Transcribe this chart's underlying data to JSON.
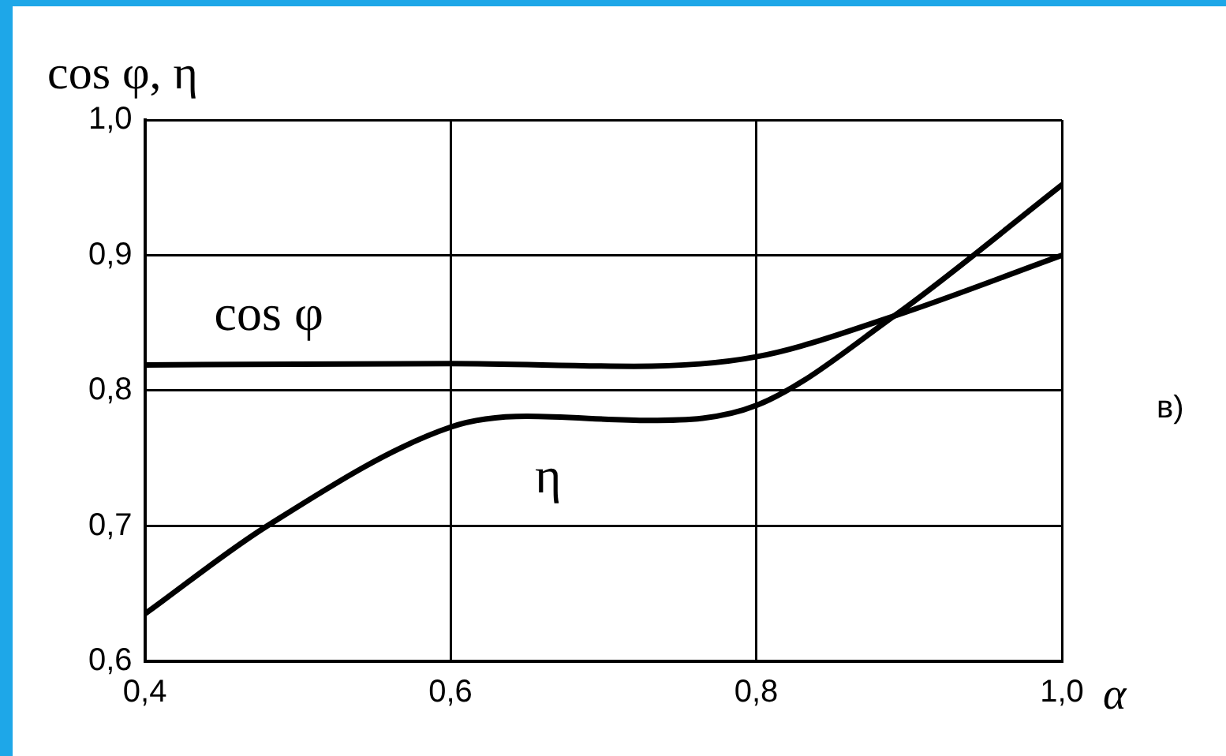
{
  "chart_data": {
    "type": "line",
    "ylabel": "cos φ, η",
    "xlabel": "α",
    "annotations": [
      "в)"
    ],
    "xlim": [
      0.4,
      1.0
    ],
    "xticks": [
      {
        "value": 0.4,
        "label": "0,4"
      },
      {
        "value": 0.6,
        "label": "0,6"
      },
      {
        "value": 0.8,
        "label": "0,8"
      },
      {
        "value": 1.0,
        "label": "1,0"
      }
    ],
    "ylim": [
      0.6,
      1.0
    ],
    "yticks": [
      {
        "value": 0.6,
        "label": "0,6"
      },
      {
        "value": 0.7,
        "label": "0,7"
      },
      {
        "value": 0.8,
        "label": "0,8"
      },
      {
        "value": 0.9,
        "label": "0,9"
      },
      {
        "value": 1.0,
        "label": "1,0"
      }
    ],
    "grid": true,
    "legend": false,
    "marker": "none",
    "line_style": "solid",
    "series": [
      {
        "name": "cos φ",
        "color": "#000000",
        "x": [
          0.4,
          0.6,
          0.72,
          0.8,
          0.89,
          1.0
        ],
        "values": [
          0.819,
          0.82,
          0.818,
          0.825,
          0.855,
          0.9
        ]
      },
      {
        "name": "η",
        "color": "#000000",
        "x": [
          0.4,
          0.48,
          0.6,
          0.65,
          0.73,
          0.8,
          0.89,
          1.0
        ],
        "values": [
          0.635,
          0.7,
          0.773,
          0.781,
          0.778,
          0.789,
          0.855,
          0.952
        ]
      }
    ]
  }
}
